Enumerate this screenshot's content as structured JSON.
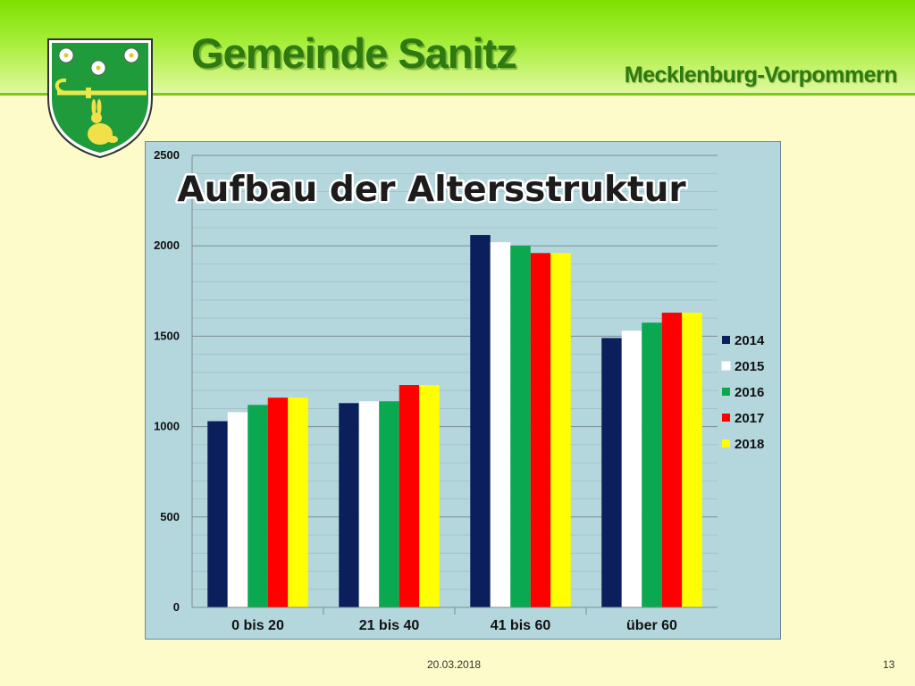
{
  "header": {
    "title": "Gemeinde Sanitz",
    "subtitle": "Mecklenburg-Vorpommern",
    "crest_icon": "coat-of-arms-icon"
  },
  "footer": {
    "date": "20.03.2018",
    "page": "13"
  },
  "colors": {
    "header_green": "#8fe81a",
    "title_green": "#2f7a0e",
    "background": "#fdfbc9",
    "chart_background": "#b3d7dc"
  },
  "chart_data": {
    "type": "bar",
    "title": "Aufbau der Altersstruktur",
    "categories": [
      "0 bis 20",
      "21 bis 40",
      "41 bis 60",
      "über 60"
    ],
    "series": [
      {
        "name": "2014",
        "color": "#0b1f5c",
        "values": [
          1030,
          1130,
          2060,
          1490
        ]
      },
      {
        "name": "2015",
        "color": "#ffffff",
        "values": [
          1080,
          1140,
          2020,
          1530
        ]
      },
      {
        "name": "2016",
        "color": "#0aa850",
        "values": [
          1120,
          1140,
          2000,
          1575
        ]
      },
      {
        "name": "2017",
        "color": "#ff0000",
        "values": [
          1160,
          1230,
          1960,
          1630
        ]
      },
      {
        "name": "2018",
        "color": "#ffff00",
        "values": [
          1160,
          1230,
          1960,
          1630
        ]
      }
    ],
    "ylim": [
      0,
      2500
    ],
    "yticks": [
      "0",
      "500",
      "1000",
      "1500",
      "2000",
      "2500"
    ],
    "grid": true,
    "legend_position": "right"
  }
}
